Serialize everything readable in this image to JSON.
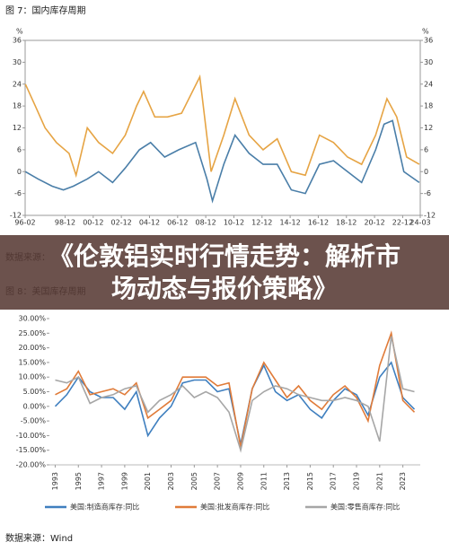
{
  "banner_title": "《伦敦铝实时行情走势：解析市场动态与报价策略》",
  "chart_data": [
    {
      "type": "line",
      "title": "图 7：国内库存周期",
      "ylabel": "%",
      "source": "数据来源：",
      "xlim": [
        1996.08,
        2024.17
      ],
      "xticks": [
        {
          "value": 1996.08,
          "label": "96-02"
        },
        {
          "value": 1998.92,
          "label": "98-12"
        },
        {
          "value": 2000.92,
          "label": "00-12"
        },
        {
          "value": 2002.92,
          "label": "02-12"
        },
        {
          "value": 2004.92,
          "label": "04-12"
        },
        {
          "value": 2006.92,
          "label": "06-12"
        },
        {
          "value": 2008.92,
          "label": "08-12"
        },
        {
          "value": 2010.92,
          "label": "10-12"
        },
        {
          "value": 2012.92,
          "label": "12-12"
        },
        {
          "value": 2014.92,
          "label": "14-12"
        },
        {
          "value": 2016.92,
          "label": "16-12"
        },
        {
          "value": 2018.92,
          "label": "18-12"
        },
        {
          "value": 2020.92,
          "label": "20-12"
        },
        {
          "value": 2022.92,
          "label": "22-12"
        },
        {
          "value": 2024.17,
          "label": "24-03"
        }
      ],
      "ylim": [
        -12,
        36
      ],
      "yticks": [
        -12,
        -6,
        0,
        6,
        12,
        18,
        24,
        30,
        36
      ],
      "grid": false,
      "series": [
        {
          "color": "#4a7ea8",
          "x": [
            1996.1,
            1997,
            1998,
            1998.8,
            1999.5,
            2000.5,
            2001.3,
            2002.3,
            2003.2,
            2004.2,
            2005,
            2006,
            2007,
            2008.2,
            2009,
            2009.4,
            2010.2,
            2011,
            2012,
            2013,
            2014,
            2015,
            2016,
            2017,
            2018,
            2019,
            2020,
            2021,
            2021.6,
            2022.2,
            2023,
            2024.1
          ],
          "values": [
            0,
            -2,
            -4,
            -5,
            -4,
            -2,
            0,
            -3,
            1,
            6,
            8,
            4,
            6,
            8,
            -2,
            -8,
            2,
            10,
            5,
            2,
            2,
            -5,
            -6,
            2,
            3,
            0,
            -3,
            6,
            13,
            14,
            0,
            -3
          ]
        },
        {
          "color": "#e6a444",
          "x": [
            1996.1,
            1996.8,
            1997.5,
            1998.3,
            1999.2,
            1999.7,
            2000.5,
            2001.3,
            2002.3,
            2003.2,
            2004,
            2004.5,
            2005.3,
            2006.2,
            2007.2,
            2008.5,
            2009.3,
            2010.2,
            2011,
            2012,
            2013,
            2014,
            2015,
            2016,
            2017,
            2018,
            2019,
            2020,
            2021,
            2021.8,
            2022.5,
            2023.2,
            2024.1
          ],
          "values": [
            24,
            18,
            12,
            8,
            5,
            -1,
            12,
            8,
            5,
            10,
            18,
            22,
            15,
            15,
            16,
            26,
            0,
            10,
            20,
            10,
            6,
            9,
            0,
            -1,
            10,
            8,
            4,
            2,
            10,
            20,
            15,
            4,
            2
          ]
        }
      ]
    },
    {
      "type": "line",
      "title": "图 8：美国库存周期",
      "source": "数据来源：Wind",
      "xlim": [
        1992.5,
        2024.5
      ],
      "xticks": [
        1993,
        1995,
        1997,
        1999,
        2001,
        2003,
        2005,
        2007,
        2009,
        2011,
        2013,
        2015,
        2017,
        2019,
        2021,
        2023
      ],
      "ylim": [
        -20,
        30
      ],
      "yticks": [
        {
          "value": -20,
          "label": "-20.00%"
        },
        {
          "value": -15,
          "label": "-15.00%"
        },
        {
          "value": -10,
          "label": "-10.00%"
        },
        {
          "value": -5,
          "label": "-5.00%"
        },
        {
          "value": 0,
          "label": "0.00%"
        },
        {
          "value": 5,
          "label": "5.00%"
        },
        {
          "value": 10,
          "label": "10.00%"
        },
        {
          "value": 15,
          "label": "15.00%"
        },
        {
          "value": 20,
          "label": "20.00%"
        },
        {
          "value": 25,
          "label": "25.00%"
        },
        {
          "value": 30,
          "label": "30.00%"
        }
      ],
      "grid": false,
      "series": [
        {
          "name": "美国:制造商库存:同比",
          "color": "#3f7fbf",
          "x": [
            1993,
            1994,
            1995,
            1996,
            1997,
            1998,
            1999,
            2000,
            2001,
            2002,
            2003,
            2004,
            2005,
            2006,
            2007,
            2008,
            2009,
            2010,
            2011,
            2012,
            2013,
            2014,
            2015,
            2016,
            2017,
            2018,
            2019,
            2020,
            2021,
            2022,
            2023,
            2024
          ],
          "values": [
            0,
            4,
            10,
            5,
            3,
            3,
            -1,
            5,
            -10,
            -4,
            0,
            8,
            9,
            9,
            5,
            6,
            -13,
            6,
            14,
            5,
            2,
            4,
            -1,
            -4,
            2,
            6,
            4,
            -3,
            10,
            15,
            3,
            -1
          ]
        },
        {
          "name": "美国:批发商库存:同比",
          "color": "#e07b39",
          "x": [
            1993,
            1994,
            1995,
            1996,
            1997,
            1998,
            1999,
            2000,
            2001,
            2002,
            2003,
            2004,
            2005,
            2006,
            2007,
            2008,
            2009,
            2010,
            2011,
            2012,
            2013,
            2014,
            2015,
            2016,
            2017,
            2018,
            2019,
            2020,
            2021,
            2022,
            2023,
            2024
          ],
          "values": [
            4,
            6,
            12,
            4,
            5,
            6,
            4,
            8,
            -4,
            -1,
            2,
            10,
            10,
            10,
            7,
            8,
            -14,
            6,
            15,
            9,
            3,
            7,
            2,
            -1,
            4,
            7,
            3,
            -5,
            14,
            25,
            2,
            -2
          ]
        },
        {
          "name": "美国:零售商库存:同比",
          "color": "#a6a6a6",
          "x": [
            1993,
            1994,
            1995,
            1996,
            1997,
            1998,
            1999,
            2000,
            2001,
            2002,
            2003,
            2004,
            2005,
            2006,
            2007,
            2008,
            2009,
            2010,
            2011,
            2012,
            2013,
            2014,
            2015,
            2016,
            2017,
            2018,
            2019,
            2020,
            2021,
            2022,
            2023,
            2024
          ],
          "values": [
            9,
            8,
            10,
            1,
            3,
            4,
            6,
            7,
            -2,
            2,
            4,
            7,
            3,
            5,
            3,
            -2,
            -15,
            2,
            5,
            7,
            6,
            4,
            3,
            2,
            2,
            3,
            2,
            0,
            -12,
            24,
            6,
            5
          ]
        }
      ]
    }
  ]
}
